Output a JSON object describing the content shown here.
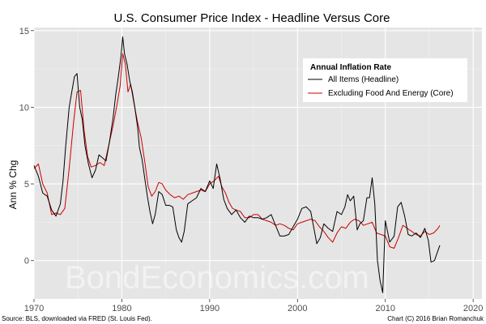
{
  "chart_data": {
    "type": "line",
    "title": "U.S. Consumer Price Index - Headline Versus Core",
    "xlabel": "",
    "ylabel": "Ann % Chg",
    "xlim": [
      1970,
      2021
    ],
    "ylim": [
      -2.5,
      15.2
    ],
    "x_ticks": [
      1970,
      1980,
      1990,
      2000,
      2010,
      2020
    ],
    "y_ticks": [
      0,
      5,
      10,
      15
    ],
    "grid": true,
    "legend": {
      "title": "Annual Inflation Rate",
      "position": "top-right"
    },
    "source_note": "Source: BLS, downloaded via FRED (St. Louis Fed).",
    "credit_note": "Chart (C) 2016 Brian Romanchuk",
    "watermark": "BondEconomics.com",
    "series": [
      {
        "name": "All Items (Headline)",
        "color": "#000000",
        "x": [
          1970.0,
          1970.5,
          1971.0,
          1971.5,
          1972.0,
          1972.5,
          1973.0,
          1973.3,
          1973.6,
          1974.0,
          1974.3,
          1974.6,
          1974.9,
          1975.2,
          1975.5,
          1975.8,
          1976.2,
          1976.6,
          1977.0,
          1977.4,
          1977.8,
          1978.2,
          1978.6,
          1979.0,
          1979.3,
          1979.6,
          1979.9,
          1980.1,
          1980.3,
          1980.6,
          1980.9,
          1981.2,
          1981.5,
          1981.8,
          1982.0,
          1982.3,
          1982.6,
          1982.9,
          1983.2,
          1983.5,
          1983.8,
          1984.2,
          1984.6,
          1985.0,
          1985.4,
          1985.8,
          1986.2,
          1986.5,
          1986.8,
          1987.1,
          1987.5,
          1988.0,
          1988.5,
          1989.0,
          1989.5,
          1990.0,
          1990.4,
          1990.8,
          1991.2,
          1991.6,
          1992.0,
          1992.5,
          1993.0,
          1993.5,
          1994.0,
          1994.5,
          1995.0,
          1995.5,
          1996.0,
          1996.5,
          1997.0,
          1997.5,
          1998.0,
          1998.5,
          1999.0,
          1999.5,
          2000.0,
          2000.5,
          2001.0,
          2001.5,
          2001.9,
          2002.2,
          2002.6,
          2003.0,
          2003.5,
          2004.0,
          2004.5,
          2005.0,
          2005.4,
          2005.7,
          2006.0,
          2006.4,
          2006.8,
          2007.1,
          2007.5,
          2007.9,
          2008.2,
          2008.5,
          2008.8,
          2009.1,
          2009.4,
          2009.7,
          2010.0,
          2010.5,
          2011.0,
          2011.4,
          2011.8,
          2012.2,
          2012.6,
          2013.0,
          2013.5,
          2014.0,
          2014.5,
          2014.9,
          2015.2,
          2015.6,
          2015.9,
          2016.2
        ],
        "y": [
          6.2,
          5.5,
          4.4,
          4.2,
          3.3,
          2.9,
          3.7,
          5.2,
          7.4,
          10.0,
          11.0,
          12.0,
          12.2,
          10.0,
          9.2,
          7.5,
          6.3,
          5.4,
          5.9,
          6.9,
          6.7,
          6.5,
          7.8,
          9.3,
          10.8,
          12.0,
          13.3,
          14.6,
          13.5,
          12.8,
          11.7,
          11.0,
          9.9,
          8.7,
          7.4,
          6.6,
          5.4,
          4.2,
          3.2,
          2.4,
          3.0,
          4.5,
          4.3,
          3.6,
          3.6,
          3.5,
          2.0,
          1.5,
          1.2,
          1.9,
          3.7,
          3.9,
          4.1,
          4.7,
          4.5,
          5.2,
          4.7,
          6.3,
          5.3,
          4.0,
          3.4,
          3.0,
          3.3,
          2.8,
          2.5,
          2.9,
          2.8,
          2.8,
          2.7,
          2.8,
          3.0,
          2.3,
          1.6,
          1.6,
          1.7,
          2.2,
          2.7,
          3.4,
          3.5,
          3.2,
          2.0,
          1.1,
          1.5,
          2.4,
          2.1,
          1.9,
          3.2,
          3.0,
          3.5,
          4.3,
          3.9,
          4.2,
          2.0,
          2.4,
          2.6,
          4.1,
          4.1,
          5.4,
          3.7,
          0.0,
          -1.3,
          -2.1,
          2.6,
          1.2,
          1.6,
          3.5,
          3.8,
          2.9,
          1.7,
          1.6,
          1.8,
          1.5,
          2.1,
          1.3,
          -0.1,
          0.0,
          0.5,
          1.0
        ]
      },
      {
        "name": "Excluding Food And Energy (Core)",
        "color": "#cc0000",
        "x": [
          1970.0,
          1970.5,
          1971.0,
          1971.5,
          1972.0,
          1972.5,
          1973.0,
          1973.5,
          1974.0,
          1974.5,
          1974.9,
          1975.3,
          1975.7,
          1976.1,
          1976.5,
          1977.0,
          1977.5,
          1978.0,
          1978.5,
          1979.0,
          1979.4,
          1979.8,
          1980.1,
          1980.4,
          1980.7,
          1981.0,
          1981.4,
          1981.8,
          1982.2,
          1982.6,
          1983.0,
          1983.4,
          1983.8,
          1984.2,
          1984.6,
          1985.0,
          1985.5,
          1986.0,
          1986.5,
          1987.0,
          1987.5,
          1988.0,
          1988.5,
          1989.0,
          1989.5,
          1990.0,
          1990.5,
          1991.0,
          1991.4,
          1991.8,
          1992.2,
          1992.6,
          1993.0,
          1993.5,
          1994.0,
          1994.5,
          1995.0,
          1995.5,
          1996.0,
          1996.5,
          1997.0,
          1997.5,
          1998.0,
          1998.5,
          1999.0,
          1999.5,
          2000.0,
          2000.5,
          2001.0,
          2001.5,
          2002.0,
          2002.5,
          2003.0,
          2003.5,
          2004.0,
          2004.5,
          2005.0,
          2005.5,
          2006.0,
          2006.5,
          2007.0,
          2007.5,
          2008.0,
          2008.5,
          2009.0,
          2009.5,
          2010.0,
          2010.5,
          2011.0,
          2011.5,
          2012.0,
          2012.5,
          2013.0,
          2013.5,
          2014.0,
          2014.5,
          2015.0,
          2015.5,
          2016.0,
          2016.2
        ],
        "y": [
          6.0,
          6.3,
          5.0,
          4.4,
          3.0,
          3.1,
          3.0,
          3.4,
          6.0,
          9.0,
          11.0,
          11.1,
          8.5,
          6.8,
          6.1,
          6.2,
          6.4,
          6.2,
          7.5,
          8.8,
          10.0,
          11.4,
          13.5,
          12.8,
          11.0,
          11.5,
          10.2,
          9.0,
          8.0,
          6.5,
          4.8,
          4.2,
          4.5,
          5.1,
          5.0,
          4.6,
          4.3,
          4.1,
          4.2,
          4.0,
          4.3,
          4.4,
          4.5,
          4.6,
          4.5,
          5.0,
          5.2,
          5.5,
          4.8,
          4.4,
          3.8,
          3.4,
          3.3,
          3.2,
          2.8,
          2.8,
          3.0,
          3.0,
          2.7,
          2.6,
          2.5,
          2.3,
          2.4,
          2.3,
          2.1,
          2.0,
          2.4,
          2.5,
          2.6,
          2.7,
          2.6,
          2.2,
          1.9,
          1.5,
          1.2,
          1.8,
          2.2,
          2.1,
          2.5,
          2.7,
          2.6,
          2.3,
          2.4,
          2.5,
          1.8,
          1.7,
          1.6,
          0.9,
          0.8,
          1.5,
          2.3,
          2.1,
          1.9,
          1.7,
          1.6,
          1.9,
          1.7,
          1.8,
          2.1,
          2.3
        ]
      }
    ]
  }
}
